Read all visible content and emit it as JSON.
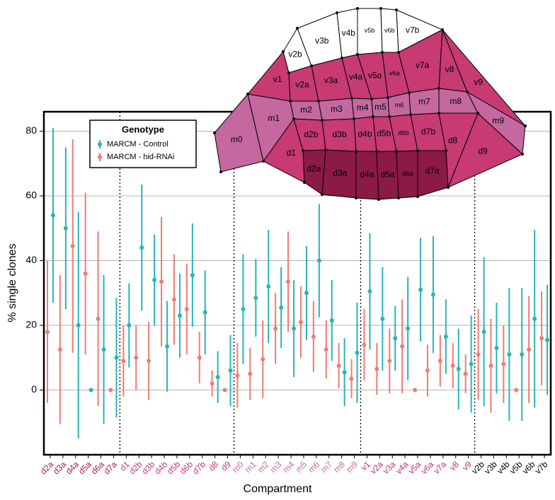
{
  "chart_data": {
    "type": "errorbar",
    "x_label": "Compartment",
    "y_label": "% single clones",
    "legend_title": "Genotype",
    "categories": [
      "d2a",
      "d3a",
      "d4a",
      "d5a",
      "d6a",
      "d7a",
      "d1",
      "d2b",
      "d3b",
      "d4b",
      "d5b",
      "d6b",
      "d7b",
      "d8",
      "d9",
      "m0",
      "m1",
      "m2",
      "m3",
      "m4",
      "m5",
      "m6",
      "m7",
      "m8",
      "m9",
      "v1",
      "v2a",
      "v3a",
      "v4a",
      "v5a",
      "v6a",
      "v7a",
      "v8",
      "v9",
      "v2b",
      "v3b",
      "v4b",
      "v5b",
      "v6b",
      "v7b"
    ],
    "category_colors": [
      "#9c1d4f",
      "#9c1d4f",
      "#9c1d4f",
      "#9c1d4f",
      "#9c1d4f",
      "#9c1d4f",
      "#c23a73",
      "#c23a73",
      "#c23a73",
      "#c23a73",
      "#c23a73",
      "#c23a73",
      "#c23a73",
      "#c23a73",
      "#c23a73",
      "#c86aa0",
      "#c86aa0",
      "#c86aa0",
      "#c86aa0",
      "#c86aa0",
      "#c86aa0",
      "#c86aa0",
      "#c86aa0",
      "#c86aa0",
      "#c86aa0",
      "#c2306c",
      "#c2306c",
      "#c2306c",
      "#c2306c",
      "#c2306c",
      "#c2306c",
      "#c2306c",
      "#c2306c",
      "#c2306c",
      "#000000",
      "#000000",
      "#000000",
      "#000000",
      "#000000",
      "#000000"
    ],
    "series": [
      {
        "name": "MARCM - Control",
        "color": "#26b5b8",
        "values": [
          54,
          50,
          20,
          0,
          12.5,
          10,
          20,
          44,
          34,
          13.5,
          23,
          35.5,
          24,
          4,
          6,
          25,
          28.5,
          32,
          25.5,
          19,
          30,
          40,
          21.5,
          5.5,
          11.5,
          30.5,
          22,
          16,
          19,
          31,
          29.5,
          16.5,
          6.5,
          8,
          18,
          13,
          11,
          11,
          22,
          15.5
        ],
        "errors": [
          27,
          25,
          35,
          0,
          23,
          18.5,
          13,
          19.5,
          14,
          14,
          13,
          16,
          13,
          8,
          11,
          17,
          12,
          17.5,
          12.5,
          15,
          14.5,
          17.5,
          12.5,
          10.5,
          15.5,
          18,
          16,
          10,
          16,
          16,
          18,
          11.5,
          12.5,
          15,
          23,
          14,
          20.5,
          20.5,
          27.5,
          17
        ]
      },
      {
        "name": "MARCM - hid-RNAi",
        "color": "#f07b72",
        "values": [
          18,
          12.5,
          44.5,
          36,
          22,
          0,
          9,
          10,
          9,
          33.5,
          28,
          25,
          10,
          2,
          0,
          4.5,
          5,
          9.5,
          19,
          33.5,
          21,
          16.5,
          12.5,
          7.5,
          3.5,
          14,
          6.5,
          9,
          13.5,
          0,
          6,
          9,
          7.5,
          5,
          11,
          7.5,
          8,
          0,
          12.5,
          16
        ],
        "errors": [
          22,
          23,
          33,
          25,
          27,
          0,
          11,
          10,
          12,
          20,
          14,
          14,
          8,
          4,
          0,
          10,
          8,
          12,
          11,
          15.5,
          11,
          11,
          9,
          7,
          6,
          11,
          8,
          10,
          14.5,
          0,
          8,
          8,
          7,
          6,
          14,
          14.5,
          12,
          0,
          16.5,
          14.5
        ]
      }
    ],
    "ylim": [
      -20,
      86
    ],
    "yticks": [
      0,
      20,
      40,
      60,
      80
    ],
    "grid": true
  },
  "diagram": {
    "regions": [
      "v2b",
      "v3b",
      "v4b",
      "v5b",
      "v6b",
      "v7b",
      "v1",
      "v2a",
      "v3a",
      "v4a",
      "v5a",
      "v6a",
      "v7a",
      "v8",
      "v9",
      "m0",
      "m1",
      "m2",
      "m3",
      "m4",
      "m5",
      "m6",
      "m7",
      "m8",
      "m9",
      "d1",
      "d2b",
      "d3b",
      "d4b",
      "d5b",
      "d6b",
      "d7b",
      "d8",
      "d9",
      "d2a",
      "d3a",
      "d4a",
      "d5a",
      "d6a",
      "d7a"
    ]
  }
}
